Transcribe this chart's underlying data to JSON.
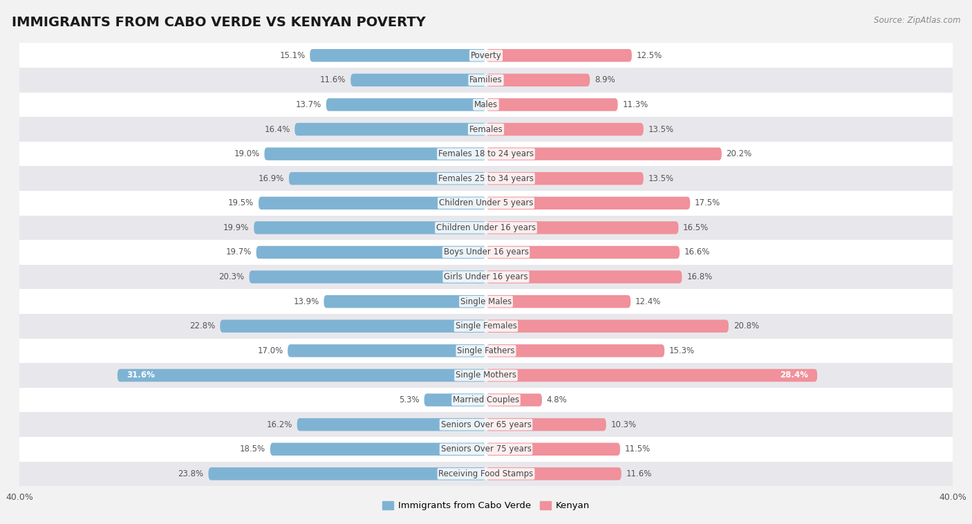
{
  "title": "IMMIGRANTS FROM CABO VERDE VS KENYAN POVERTY",
  "source": "Source: ZipAtlas.com",
  "categories": [
    "Poverty",
    "Families",
    "Males",
    "Females",
    "Females 18 to 24 years",
    "Females 25 to 34 years",
    "Children Under 5 years",
    "Children Under 16 years",
    "Boys Under 16 years",
    "Girls Under 16 years",
    "Single Males",
    "Single Females",
    "Single Fathers",
    "Single Mothers",
    "Married Couples",
    "Seniors Over 65 years",
    "Seniors Over 75 years",
    "Receiving Food Stamps"
  ],
  "left_values": [
    15.1,
    11.6,
    13.7,
    16.4,
    19.0,
    16.9,
    19.5,
    19.9,
    19.7,
    20.3,
    13.9,
    22.8,
    17.0,
    31.6,
    5.3,
    16.2,
    18.5,
    23.8
  ],
  "right_values": [
    12.5,
    8.9,
    11.3,
    13.5,
    20.2,
    13.5,
    17.5,
    16.5,
    16.6,
    16.8,
    12.4,
    20.8,
    15.3,
    28.4,
    4.8,
    10.3,
    11.5,
    11.6
  ],
  "left_color": "#7fb3d3",
  "right_color": "#f0919b",
  "left_label": "Immigrants from Cabo Verde",
  "right_label": "Kenyan",
  "xlim": 40.0,
  "bar_height": 0.52,
  "bg_color": "#f2f2f2",
  "row_color_odd": "#ffffff",
  "row_color_even": "#e8e8ec",
  "title_fontsize": 14,
  "label_fontsize": 8.5,
  "value_fontsize": 8.5,
  "axis_fontsize": 9,
  "label_color": "#444444",
  "value_color": "#555555",
  "white_text_threshold": 28.0
}
